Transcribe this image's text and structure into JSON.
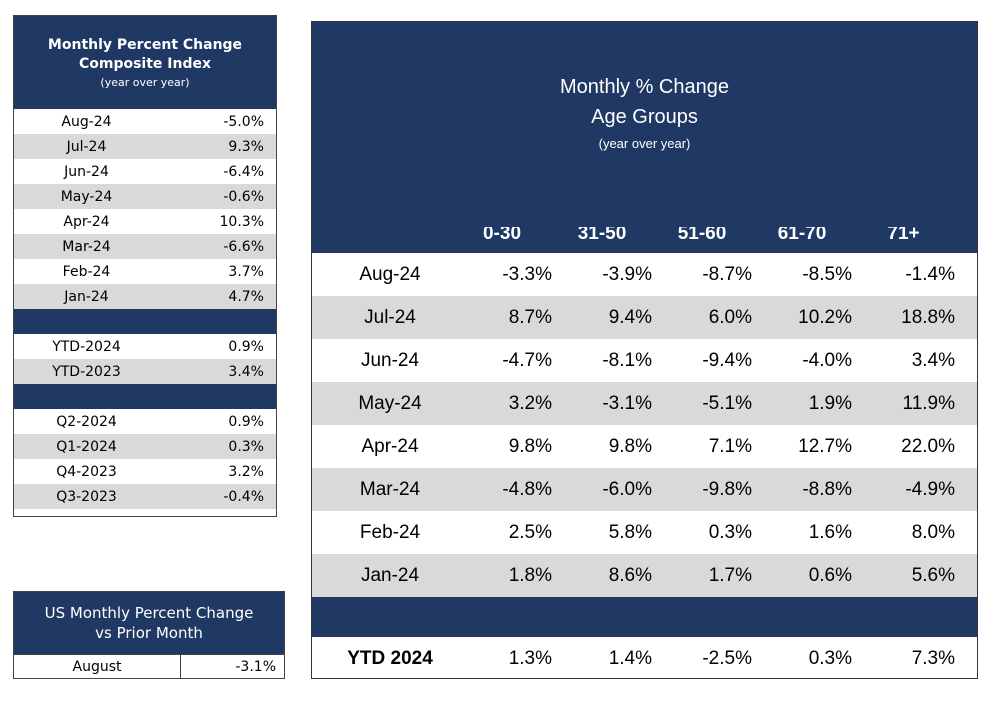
{
  "composite": {
    "title_line1": "Monthly Percent Change",
    "title_line2": "Composite Index",
    "subtitle": "(year over year)",
    "rows": [
      {
        "label": "Aug-24",
        "value": "-5.0%"
      },
      {
        "label": "Jul-24",
        "value": "9.3%"
      },
      {
        "label": "Jun-24",
        "value": "-6.4%"
      },
      {
        "label": "May-24",
        "value": "-0.6%"
      },
      {
        "label": "Apr-24",
        "value": "10.3%"
      },
      {
        "label": "Mar-24",
        "value": "-6.6%"
      },
      {
        "label": "Feb-24",
        "value": "3.7%"
      },
      {
        "label": "Jan-24",
        "value": "4.7%"
      }
    ],
    "ytd": [
      {
        "label": "YTD-2024",
        "value": "0.9%"
      },
      {
        "label": "YTD-2023",
        "value": "3.4%"
      }
    ],
    "quarters": [
      {
        "label": "Q2-2024",
        "value": "0.9%"
      },
      {
        "label": "Q1-2024",
        "value": "0.3%"
      },
      {
        "label": "Q4-2023",
        "value": "3.2%"
      },
      {
        "label": "Q3-2023",
        "value": "-0.4%"
      }
    ]
  },
  "us_monthly": {
    "title_line1": "US Monthly Percent Change",
    "title_line2": "vs Prior Month",
    "label": "August",
    "value": "-3.1%"
  },
  "age_groups": {
    "title_line1": "Monthly % Change",
    "title_line2": "Age Groups",
    "subtitle": "(year over year)",
    "columns": [
      "0-30",
      "31-50",
      "51-60",
      "61-70",
      "71+"
    ],
    "rows": [
      {
        "label": "Aug-24",
        "values": [
          "-3.3%",
          "-3.9%",
          "-8.7%",
          "-8.5%",
          "-1.4%"
        ]
      },
      {
        "label": "Jul-24",
        "values": [
          "8.7%",
          "9.4%",
          "6.0%",
          "10.2%",
          "18.8%"
        ]
      },
      {
        "label": "Jun-24",
        "values": [
          "-4.7%",
          "-8.1%",
          "-9.4%",
          "-4.0%",
          "3.4%"
        ]
      },
      {
        "label": "May-24",
        "values": [
          "3.2%",
          "-3.1%",
          "-5.1%",
          "1.9%",
          "11.9%"
        ]
      },
      {
        "label": "Apr-24",
        "values": [
          "9.8%",
          "9.8%",
          "7.1%",
          "12.7%",
          "22.0%"
        ]
      },
      {
        "label": "Mar-24",
        "values": [
          "-4.8%",
          "-6.0%",
          "-9.8%",
          "-8.8%",
          "-4.9%"
        ]
      },
      {
        "label": "Feb-24",
        "values": [
          "2.5%",
          "5.8%",
          "0.3%",
          "1.6%",
          "8.0%"
        ]
      },
      {
        "label": "Jan-24",
        "values": [
          "1.8%",
          "8.6%",
          "1.7%",
          "0.6%",
          "5.6%"
        ]
      }
    ],
    "ytd": {
      "label": "YTD 2024",
      "values": [
        "1.3%",
        "1.4%",
        "-2.5%",
        "0.3%",
        "7.3%"
      ]
    }
  },
  "colors": {
    "header": "#1f3864",
    "stripe": "#d9d9d9"
  }
}
